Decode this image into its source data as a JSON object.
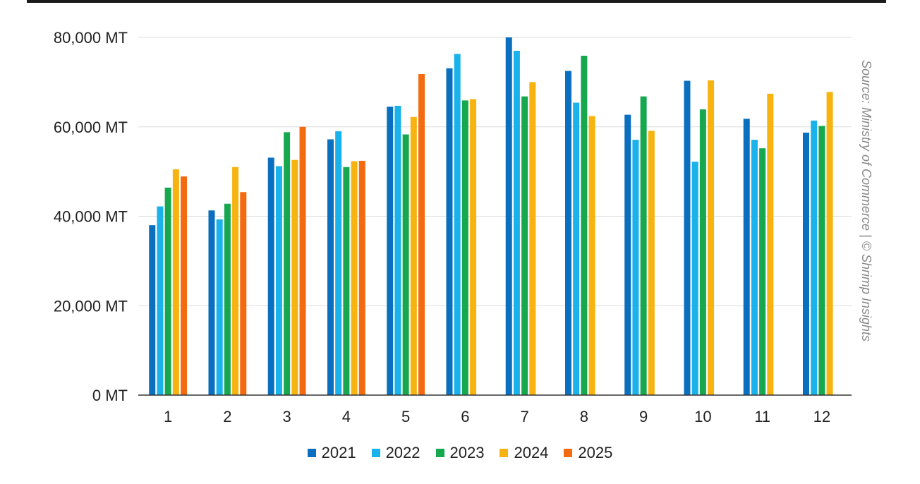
{
  "chart_data": {
    "type": "bar",
    "categories": [
      "1",
      "2",
      "3",
      "4",
      "5",
      "6",
      "7",
      "8",
      "9",
      "10",
      "11",
      "12"
    ],
    "series": [
      {
        "name": "2021",
        "color": "#0b6fbf",
        "values": [
          38000,
          41300,
          53100,
          57200,
          64500,
          73100,
          80000,
          72500,
          62700,
          70300,
          61800,
          58700
        ]
      },
      {
        "name": "2022",
        "color": "#19b2eb",
        "values": [
          42200,
          39300,
          51200,
          59000,
          64700,
          76300,
          77000,
          65400,
          57100,
          52200,
          57100,
          61400
        ]
      },
      {
        "name": "2023",
        "color": "#17a84f",
        "values": [
          46400,
          42800,
          58800,
          51000,
          58300,
          65900,
          66800,
          75900,
          66800,
          63900,
          55200,
          60200
        ]
      },
      {
        "name": "2024",
        "color": "#f7b30f",
        "values": [
          50500,
          51000,
          52600,
          52300,
          62200,
          66200,
          70000,
          62400,
          59100,
          70400,
          67400,
          67800
        ]
      },
      {
        "name": "2025",
        "color": "#f46a10",
        "values": [
          48900,
          45400,
          60000,
          52400,
          71800,
          null,
          null,
          null,
          null,
          null,
          null,
          null
        ]
      }
    ],
    "ylim": [
      0,
      80000
    ],
    "yticks": [
      {
        "value": 0,
        "label": "0 MT"
      },
      {
        "value": 20000,
        "label": "20,000 MT"
      },
      {
        "value": 40000,
        "label": "40,000 MT"
      },
      {
        "value": 60000,
        "label": "60,000 MT"
      },
      {
        "value": 80000,
        "label": "80,000 MT"
      }
    ],
    "grid": true,
    "legend": "bottom-center",
    "source_note": "Source: Ministry of Commerce | © Shrimp Insights"
  }
}
